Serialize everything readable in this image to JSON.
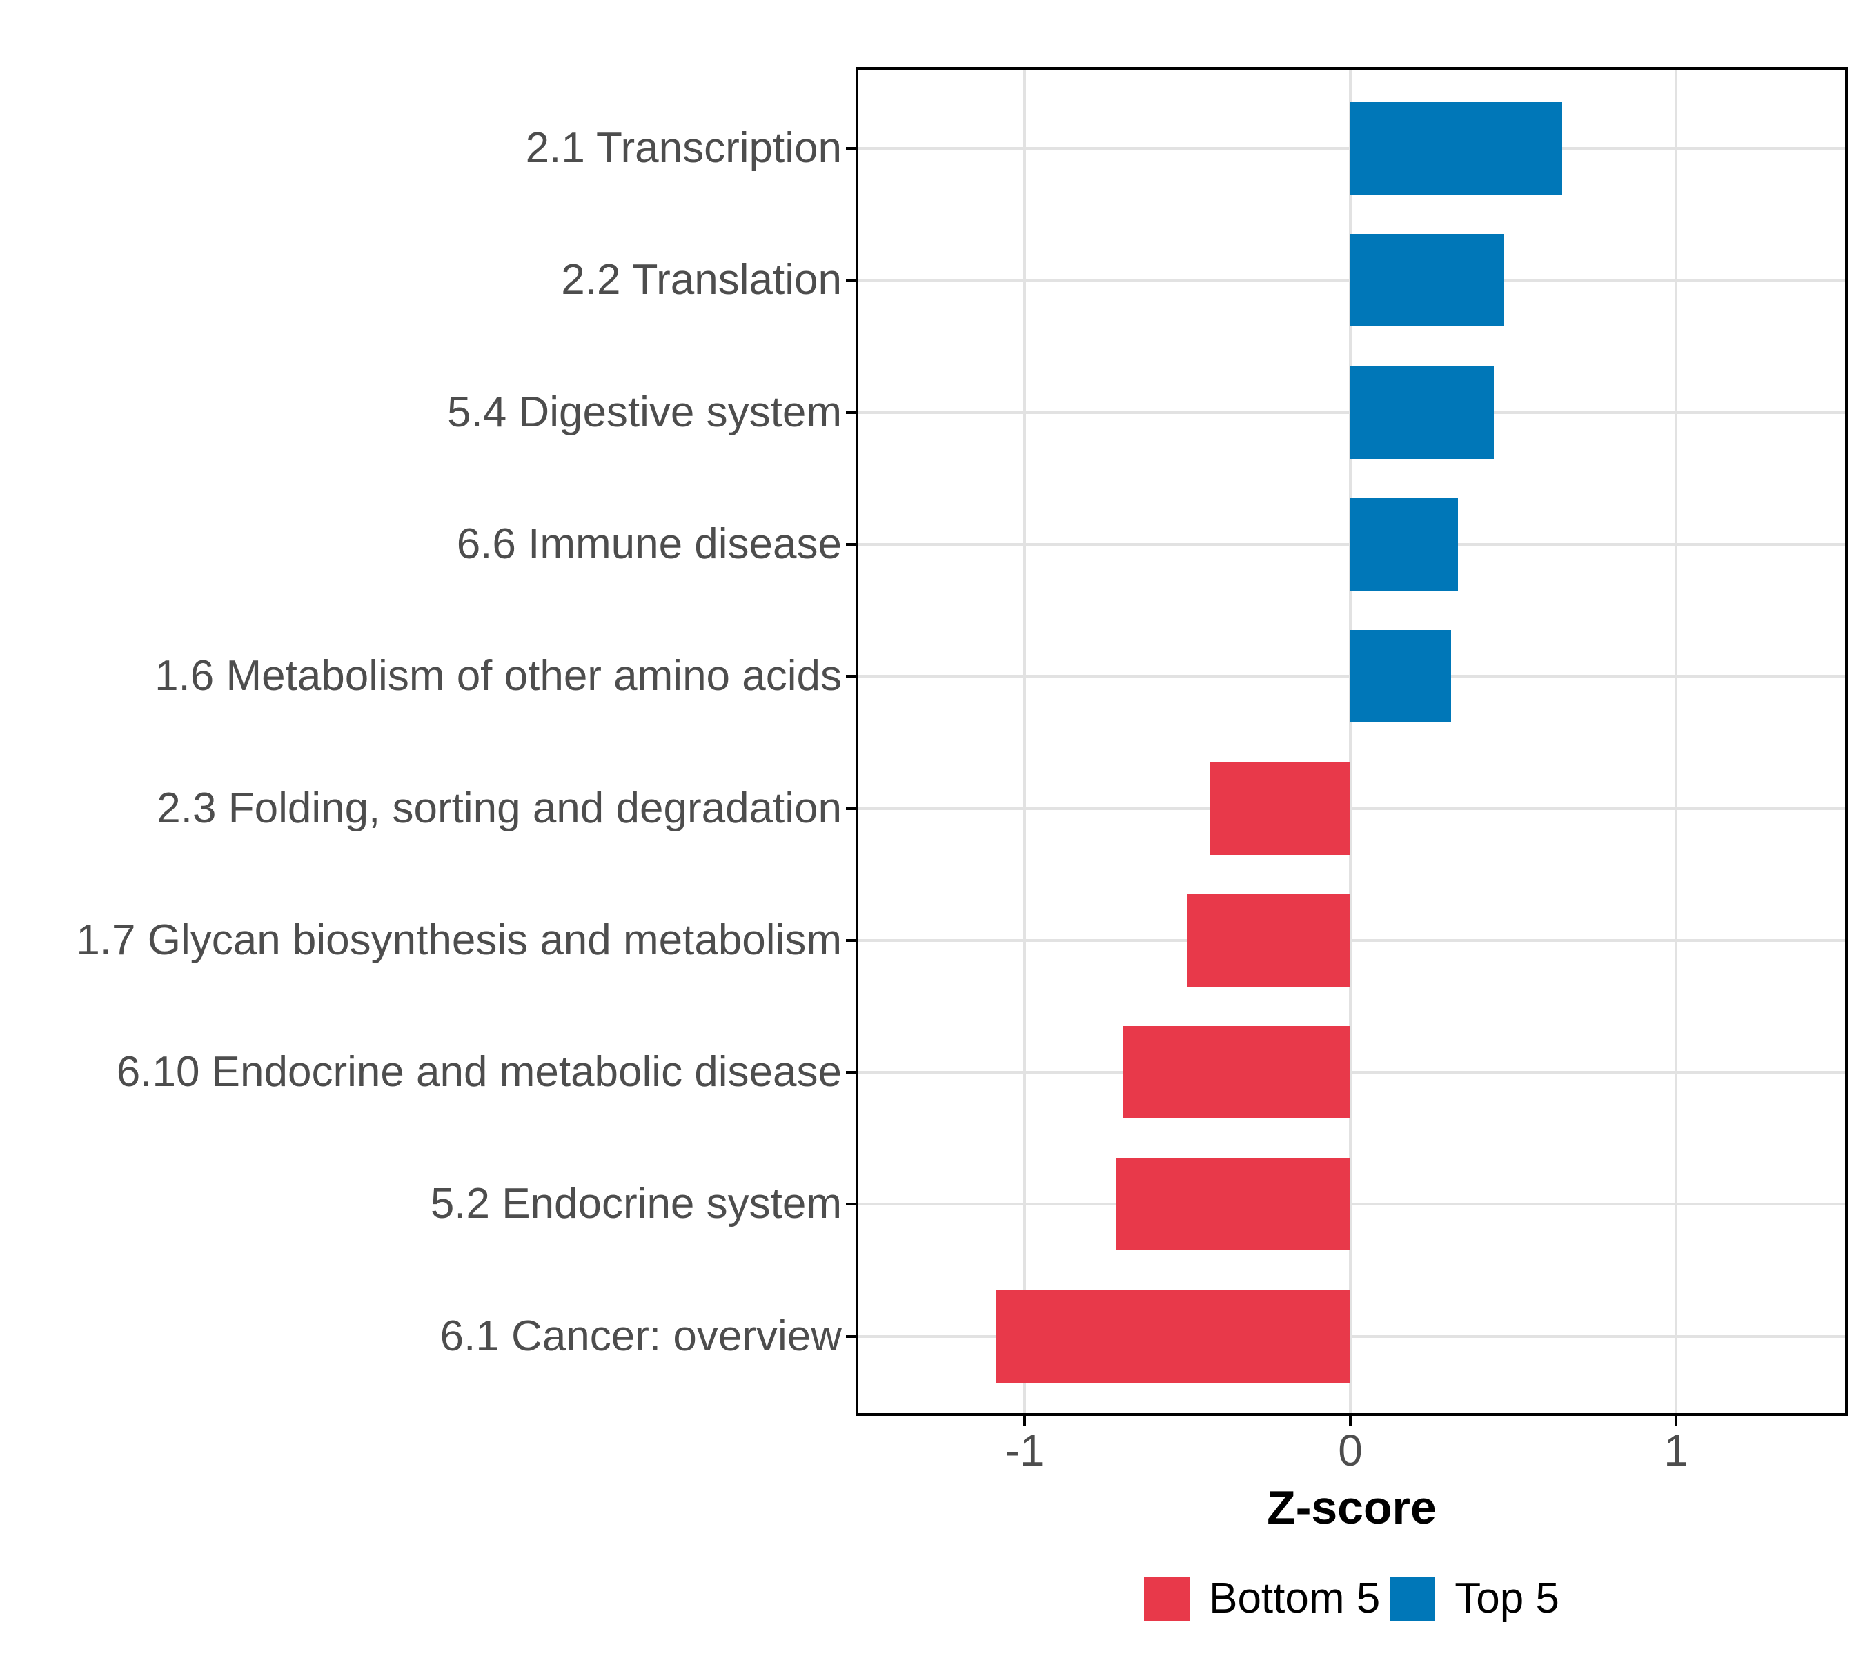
{
  "chart_data": {
    "type": "bar",
    "orientation": "horizontal",
    "title": "",
    "xlabel": "Z-score",
    "ylabel": "",
    "categories": [
      "2.1 Transcription",
      "2.2 Translation",
      "5.4 Digestive system",
      "6.6 Immune disease",
      "1.6 Metabolism of other amino acids",
      "2.3 Folding, sorting and degradation",
      "1.7 Glycan biosynthesis and metabolism",
      "6.10 Endocrine and metabolic disease",
      "5.2 Endocrine system",
      "6.1 Cancer: overview"
    ],
    "values": [
      0.65,
      0.47,
      0.44,
      0.33,
      0.31,
      -0.43,
      -0.5,
      -0.7,
      -0.72,
      -1.09
    ],
    "x_ticks": [
      -1,
      0,
      1
    ],
    "x_tick_labels": [
      "-1",
      "0",
      "1"
    ],
    "xlim": [
      -1.52,
      1.52
    ],
    "grid": "major-only",
    "legend_position": "bottom",
    "legend": [
      {
        "label": "Bottom 5",
        "color": "#E8394A"
      },
      {
        "label": "Top 5",
        "color": "#0077B8"
      }
    ],
    "series_colors": {
      "positive": "#0077B8",
      "negative": "#E8394A"
    }
  },
  "styles": {
    "grid_color": "#E2E2E2",
    "panel_border_color": "#000000",
    "axis_text_color": "#4D4D4D",
    "title_text_color": "#000000",
    "legend_text_color": "#000000",
    "background_color": "#FFFFFF"
  }
}
